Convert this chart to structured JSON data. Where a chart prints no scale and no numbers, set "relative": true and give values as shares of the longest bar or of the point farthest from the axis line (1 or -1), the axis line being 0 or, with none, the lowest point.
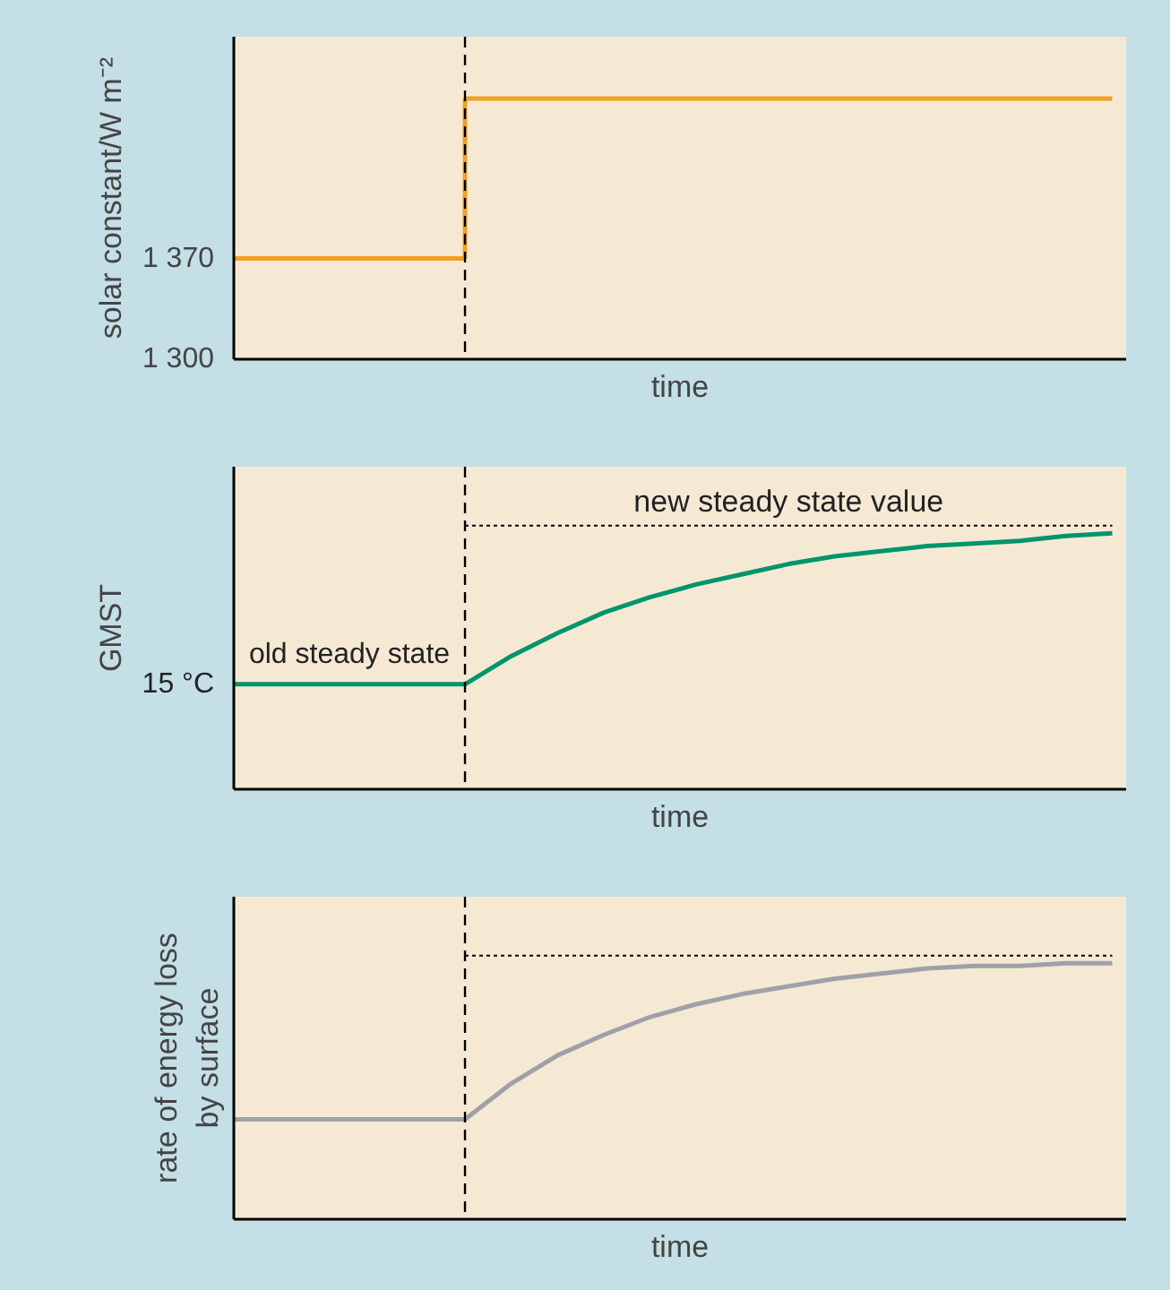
{
  "chart_data": [
    {
      "type": "step",
      "xlabel": "time",
      "ylabel": "solar constant/W m⁻²",
      "color": "#f0a020",
      "categories": [
        null,
        null,
        null,
        null,
        null,
        null,
        null,
        null,
        null,
        null,
        null,
        null,
        null,
        null,
        null,
        null,
        null,
        null,
        null,
        null
      ],
      "values": [
        1370,
        1370,
        1370,
        1370,
        1370,
        1481,
        1481,
        1481,
        1481,
        1481,
        1481,
        1481,
        1481,
        1481,
        1481,
        1481,
        1481,
        1481,
        1481,
        1481
      ],
      "ylim": [
        1300,
        1524
      ],
      "yticks": [
        {
          "value": 1300,
          "label": "1 300"
        },
        {
          "value": 1370,
          "label": "1 370"
        }
      ],
      "grid": false
    },
    {
      "type": "line",
      "relative": true,
      "xlabel": "time",
      "ylabel": "GMST",
      "color": "#00956b",
      "categories": [
        null,
        null,
        null,
        null,
        null,
        null,
        null,
        null,
        null,
        null,
        null,
        null,
        null,
        null,
        null,
        null,
        null,
        null,
        null,
        null
      ],
      "values": [
        0.41,
        0.41,
        0.41,
        0.41,
        0.41,
        0.41,
        0.52,
        0.61,
        0.69,
        0.75,
        0.8,
        0.84,
        0.88,
        0.91,
        0.93,
        0.95,
        0.96,
        0.97,
        0.99,
        1
      ],
      "annotations": [
        "15 °C",
        "old steady state"
      ],
      "ref_lines": [
        {
          "axis": "y",
          "value": 1.03,
          "label": "new steady state value",
          "line_style": "dotted",
          "color": "#000000"
        }
      ],
      "grid": false
    },
    {
      "type": "line",
      "relative": true,
      "xlabel": "time",
      "ylabel": "rate of energy loss by surface",
      "color": "#a0a0a8",
      "categories": [
        null,
        null,
        null,
        null,
        null,
        null,
        null,
        null,
        null,
        null,
        null,
        null,
        null,
        null,
        null,
        null,
        null,
        null,
        null,
        null
      ],
      "values": [
        0.39,
        0.39,
        0.39,
        0.39,
        0.39,
        0.39,
        0.53,
        0.64,
        0.72,
        0.79,
        0.84,
        0.88,
        0.91,
        0.94,
        0.96,
        0.98,
        0.99,
        0.99,
        1,
        1
      ],
      "ref_lines": [
        {
          "axis": "y",
          "value": 1.03,
          "line_style": "dotted",
          "color": "#000000"
        }
      ],
      "grid": false
    }
  ]
}
